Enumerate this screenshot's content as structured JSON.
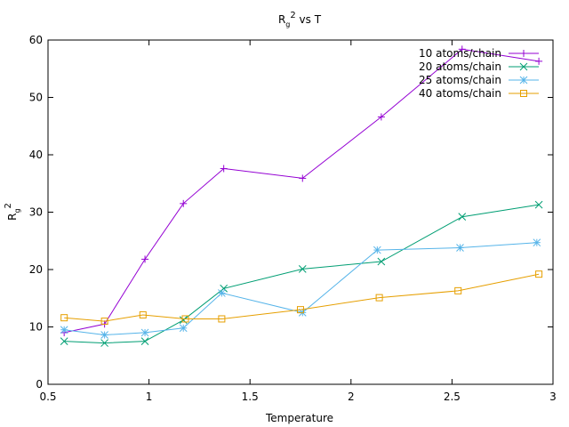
{
  "chart_data": {
    "type": "line",
    "title": {
      "base": "R",
      "sub": "g",
      "sup": "2",
      "rest": " vs T"
    },
    "xlabel": "Temperature",
    "ylabel": {
      "base": "R",
      "sub": "g",
      "sup": "2"
    },
    "xlim": [
      0.5,
      3
    ],
    "ylim": [
      0,
      60
    ],
    "xticks": [
      "0.5",
      "1",
      "1.5",
      "2",
      "2.5",
      "3"
    ],
    "yticks": [
      "0",
      "10",
      "20",
      "30",
      "40",
      "50",
      "60"
    ],
    "grid": false,
    "legend_position": "top-right",
    "series": [
      {
        "name": "10 atoms/chain",
        "color": "#9400d3",
        "marker": "plus",
        "points": [
          [
            0.58,
            9.0
          ],
          [
            0.78,
            10.5
          ],
          [
            0.98,
            21.8
          ],
          [
            1.17,
            31.5
          ],
          [
            1.37,
            37.6
          ],
          [
            1.76,
            35.9
          ],
          [
            2.15,
            46.6
          ],
          [
            2.55,
            58.4
          ],
          [
            2.93,
            56.3
          ]
        ]
      },
      {
        "name": "20 atoms/chain",
        "color": "#009e73",
        "marker": "cross",
        "points": [
          [
            0.58,
            7.5
          ],
          [
            0.78,
            7.2
          ],
          [
            0.98,
            7.5
          ],
          [
            1.17,
            11.2
          ],
          [
            1.37,
            16.7
          ],
          [
            1.76,
            20.1
          ],
          [
            2.15,
            21.4
          ],
          [
            2.55,
            29.2
          ],
          [
            2.93,
            31.3
          ]
        ]
      },
      {
        "name": "25 atoms/chain",
        "color": "#56b4e9",
        "marker": "star",
        "points": [
          [
            0.58,
            9.5
          ],
          [
            0.78,
            8.6
          ],
          [
            0.98,
            9.0
          ],
          [
            1.17,
            9.8
          ],
          [
            1.36,
            15.9
          ],
          [
            1.76,
            12.5
          ],
          [
            2.13,
            23.4
          ],
          [
            2.54,
            23.8
          ],
          [
            2.92,
            24.7
          ]
        ]
      },
      {
        "name": "40 atoms/chain",
        "color": "#e69f00",
        "marker": "square",
        "points": [
          [
            0.58,
            11.6
          ],
          [
            0.78,
            11.0
          ],
          [
            0.97,
            12.1
          ],
          [
            1.18,
            11.4
          ],
          [
            1.36,
            11.4
          ],
          [
            1.75,
            13.0
          ],
          [
            2.14,
            15.1
          ],
          [
            2.53,
            16.3
          ],
          [
            2.93,
            19.2
          ]
        ]
      }
    ]
  }
}
